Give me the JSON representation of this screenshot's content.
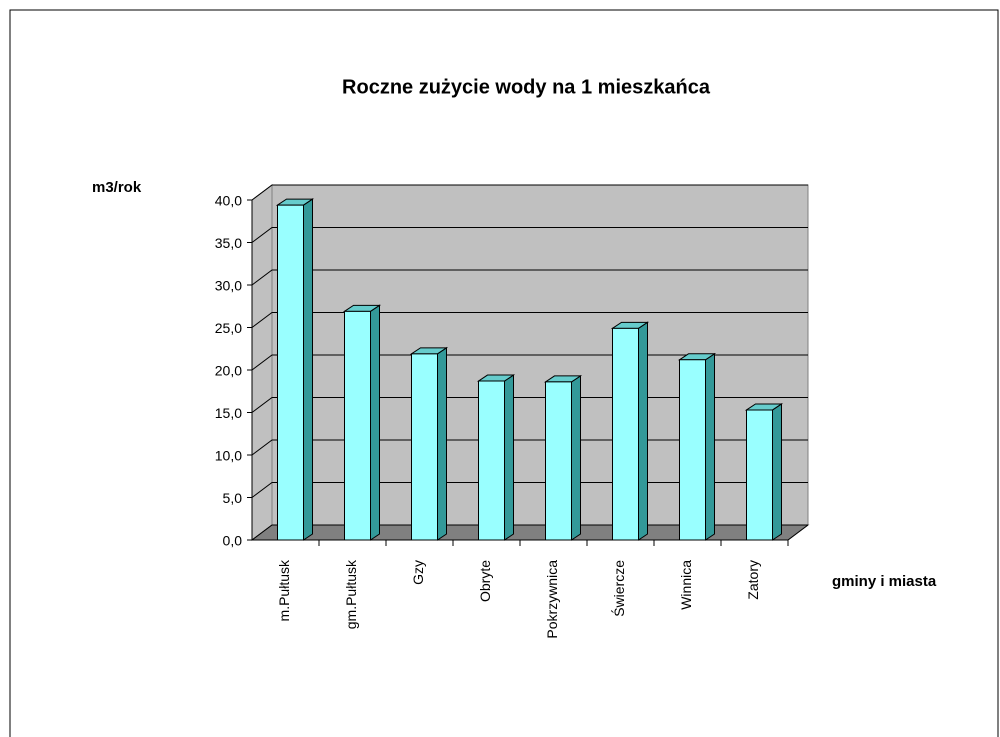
{
  "chart_data": {
    "type": "bar3d",
    "title": "Roczne zużycie wody na 1 mieszkańca",
    "y_label": "m3/rok",
    "x_label": "gminy i miasta",
    "categories": [
      "m.Pułtusk",
      "gm.Pułtusk",
      "Gzy",
      "Obryte",
      "Pokrzywnica",
      "Świercze",
      "Winnica",
      "Zatory"
    ],
    "values": [
      39.4,
      26.9,
      21.9,
      18.7,
      18.6,
      24.9,
      21.2,
      15.3
    ],
    "color": "#99ffff",
    "ylim": [
      0,
      40
    ],
    "yticks": [
      {
        "value": 0,
        "label": "0,0"
      },
      {
        "value": 5,
        "label": "5,0"
      },
      {
        "value": 10,
        "label": "10,0"
      },
      {
        "value": 15,
        "label": "15,0"
      },
      {
        "value": 20,
        "label": "20,0"
      },
      {
        "value": 25,
        "label": "25,0"
      },
      {
        "value": 30,
        "label": "30,0"
      },
      {
        "value": 35,
        "label": "35,0"
      },
      {
        "value": 40,
        "label": "40,0"
      }
    ],
    "grid": true
  }
}
